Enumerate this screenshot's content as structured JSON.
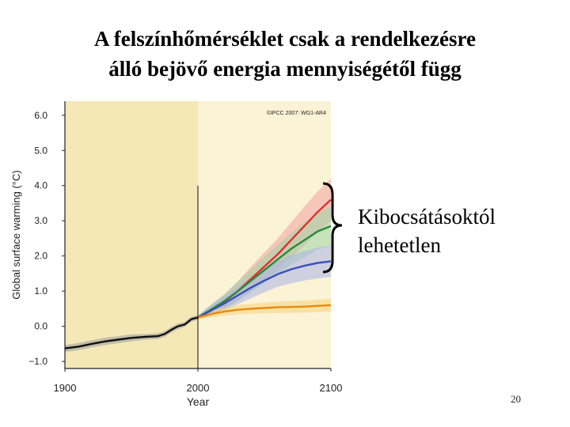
{
  "slide": {
    "title_line1": "A felszínhőmérséklet csak a rendelkezésre",
    "title_line2": "álló bejövő energia mennyiségétől függ",
    "note_line1": "Kibocsátásoktól",
    "note_line2": "lehetetlen",
    "page_number": "20"
  },
  "chart_data": {
    "type": "line",
    "title": "",
    "copyright": "©IPCC 2007: WG1-AR4",
    "xlabel": "Year",
    "ylabel": "Global surface warming (°C)",
    "xlim": [
      1900,
      2100
    ],
    "ylim": [
      -1.2,
      6.4
    ],
    "xticks": [
      1900,
      2000,
      2100
    ],
    "xtick_labels": [
      "1900",
      "2000",
      "2100"
    ],
    "yticks": [
      -1.0,
      0.0,
      1.0,
      2.0,
      3.0,
      4.0,
      5.0,
      6.0
    ],
    "ytick_labels": [
      "−1.0",
      "0.0",
      "1.0",
      "2.0",
      "3.0",
      "4.0",
      "5.0",
      "6.0"
    ],
    "grid": false,
    "background_color": "#f4e8b6",
    "projection_background_color": "#fbf3d6",
    "vertical_marker_x": 2000,
    "series": [
      {
        "color": "#111111",
        "band_color": "#9a9a9a",
        "x": [
          1900,
          1910,
          1920,
          1930,
          1940,
          1950,
          1960,
          1970,
          1975,
          1980,
          1985,
          1990,
          1995,
          2000
        ],
        "values": [
          -0.63,
          -0.58,
          -0.5,
          -0.43,
          -0.38,
          -0.33,
          -0.3,
          -0.28,
          -0.22,
          -0.1,
          0.0,
          0.05,
          0.2,
          0.25
        ],
        "band": [
          0.1,
          0.1,
          0.1,
          0.1,
          0.1,
          0.1,
          0.08,
          0.08,
          0.08,
          0.08,
          0.08,
          0.07,
          0.07,
          0.07
        ]
      },
      {
        "color": "#e03030",
        "band_color": "#f4a0a0",
        "x": [
          2000,
          2010,
          2020,
          2030,
          2040,
          2050,
          2060,
          2070,
          2080,
          2090,
          2100
        ],
        "values": [
          0.25,
          0.45,
          0.7,
          1.0,
          1.35,
          1.7,
          2.05,
          2.45,
          2.85,
          3.25,
          3.6
        ],
        "band": [
          0.05,
          0.15,
          0.2,
          0.28,
          0.35,
          0.4,
          0.45,
          0.5,
          0.55,
          0.58,
          0.6
        ]
      },
      {
        "color": "#2a8a3a",
        "band_color": "#9fd3a8",
        "x": [
          2000,
          2010,
          2020,
          2030,
          2040,
          2050,
          2060,
          2070,
          2080,
          2090,
          2100
        ],
        "values": [
          0.25,
          0.48,
          0.72,
          1.0,
          1.3,
          1.6,
          1.9,
          2.2,
          2.45,
          2.7,
          2.85
        ],
        "band": [
          0.05,
          0.15,
          0.2,
          0.28,
          0.33,
          0.38,
          0.42,
          0.45,
          0.5,
          0.52,
          0.55
        ]
      },
      {
        "color": "#3a4fb8",
        "band_color": "#a9b3ea",
        "x": [
          2000,
          2010,
          2020,
          2030,
          2040,
          2050,
          2060,
          2070,
          2080,
          2090,
          2100
        ],
        "values": [
          0.25,
          0.45,
          0.65,
          0.88,
          1.1,
          1.3,
          1.48,
          1.62,
          1.72,
          1.8,
          1.85
        ],
        "band": [
          0.05,
          0.15,
          0.2,
          0.25,
          0.3,
          0.33,
          0.36,
          0.4,
          0.42,
          0.44,
          0.45
        ]
      },
      {
        "color": "#e88a10",
        "band_color": "#f7d27a",
        "x": [
          2000,
          2010,
          2020,
          2030,
          2040,
          2050,
          2060,
          2070,
          2080,
          2090,
          2100
        ],
        "values": [
          0.25,
          0.35,
          0.42,
          0.47,
          0.5,
          0.52,
          0.54,
          0.55,
          0.56,
          0.58,
          0.6
        ],
        "band": [
          0.05,
          0.1,
          0.12,
          0.13,
          0.14,
          0.15,
          0.16,
          0.17,
          0.17,
          0.18,
          0.18
        ]
      }
    ]
  }
}
